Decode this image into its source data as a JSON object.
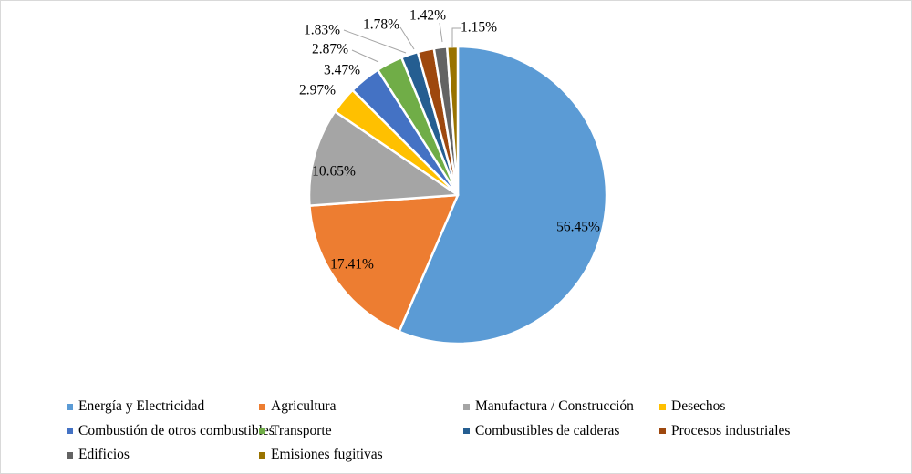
{
  "chart_data": {
    "type": "pie",
    "title": "",
    "unit": "percent",
    "start_angle_deg": 0,
    "direction": "clockwise",
    "legend_position": "bottom",
    "legend_columns": 4,
    "series": [
      {
        "label": "Energía y Electricidad",
        "value": 56.45,
        "display": "56.45%",
        "color": "#5B9BD5",
        "label_placement": "inside"
      },
      {
        "label": "Agricultura",
        "value": 17.41,
        "display": "17.41%",
        "color": "#ED7D31",
        "label_placement": "inside"
      },
      {
        "label": "Manufactura / Construcción",
        "value": 10.65,
        "display": "10.65%",
        "color": "#A5A5A5",
        "label_placement": "inside"
      },
      {
        "label": "Desechos",
        "value": 2.97,
        "display": "2.97%",
        "color": "#FFC000",
        "label_placement": "outside"
      },
      {
        "label": "Combustión de otros combustibles",
        "value": 3.47,
        "display": "3.47%",
        "color": "#4472C4",
        "label_placement": "outside"
      },
      {
        "label": "Transporte",
        "value": 2.87,
        "display": "2.87%",
        "color": "#70AD47",
        "label_placement": "outside"
      },
      {
        "label": "Combustibles de calderas",
        "value": 1.83,
        "display": "1.83%",
        "color": "#255E91",
        "label_placement": "outside"
      },
      {
        "label": "Procesos industriales",
        "value": 1.78,
        "display": "1.78%",
        "color": "#9E480E",
        "label_placement": "outside"
      },
      {
        "label": "Edificios",
        "value": 1.42,
        "display": "1.42%",
        "color": "#636363",
        "label_placement": "outside"
      },
      {
        "label": "Emisiones fugitivas",
        "value": 1.15,
        "display": "1.15%",
        "color": "#997300",
        "label_placement": "outside"
      }
    ],
    "colors": {
      "slice_border": "#FFFFFF",
      "leader_line": "#A6A6A6",
      "label_text": "#000000",
      "frame_border": "#D9D9D9",
      "background": "#FFFFFF"
    }
  }
}
